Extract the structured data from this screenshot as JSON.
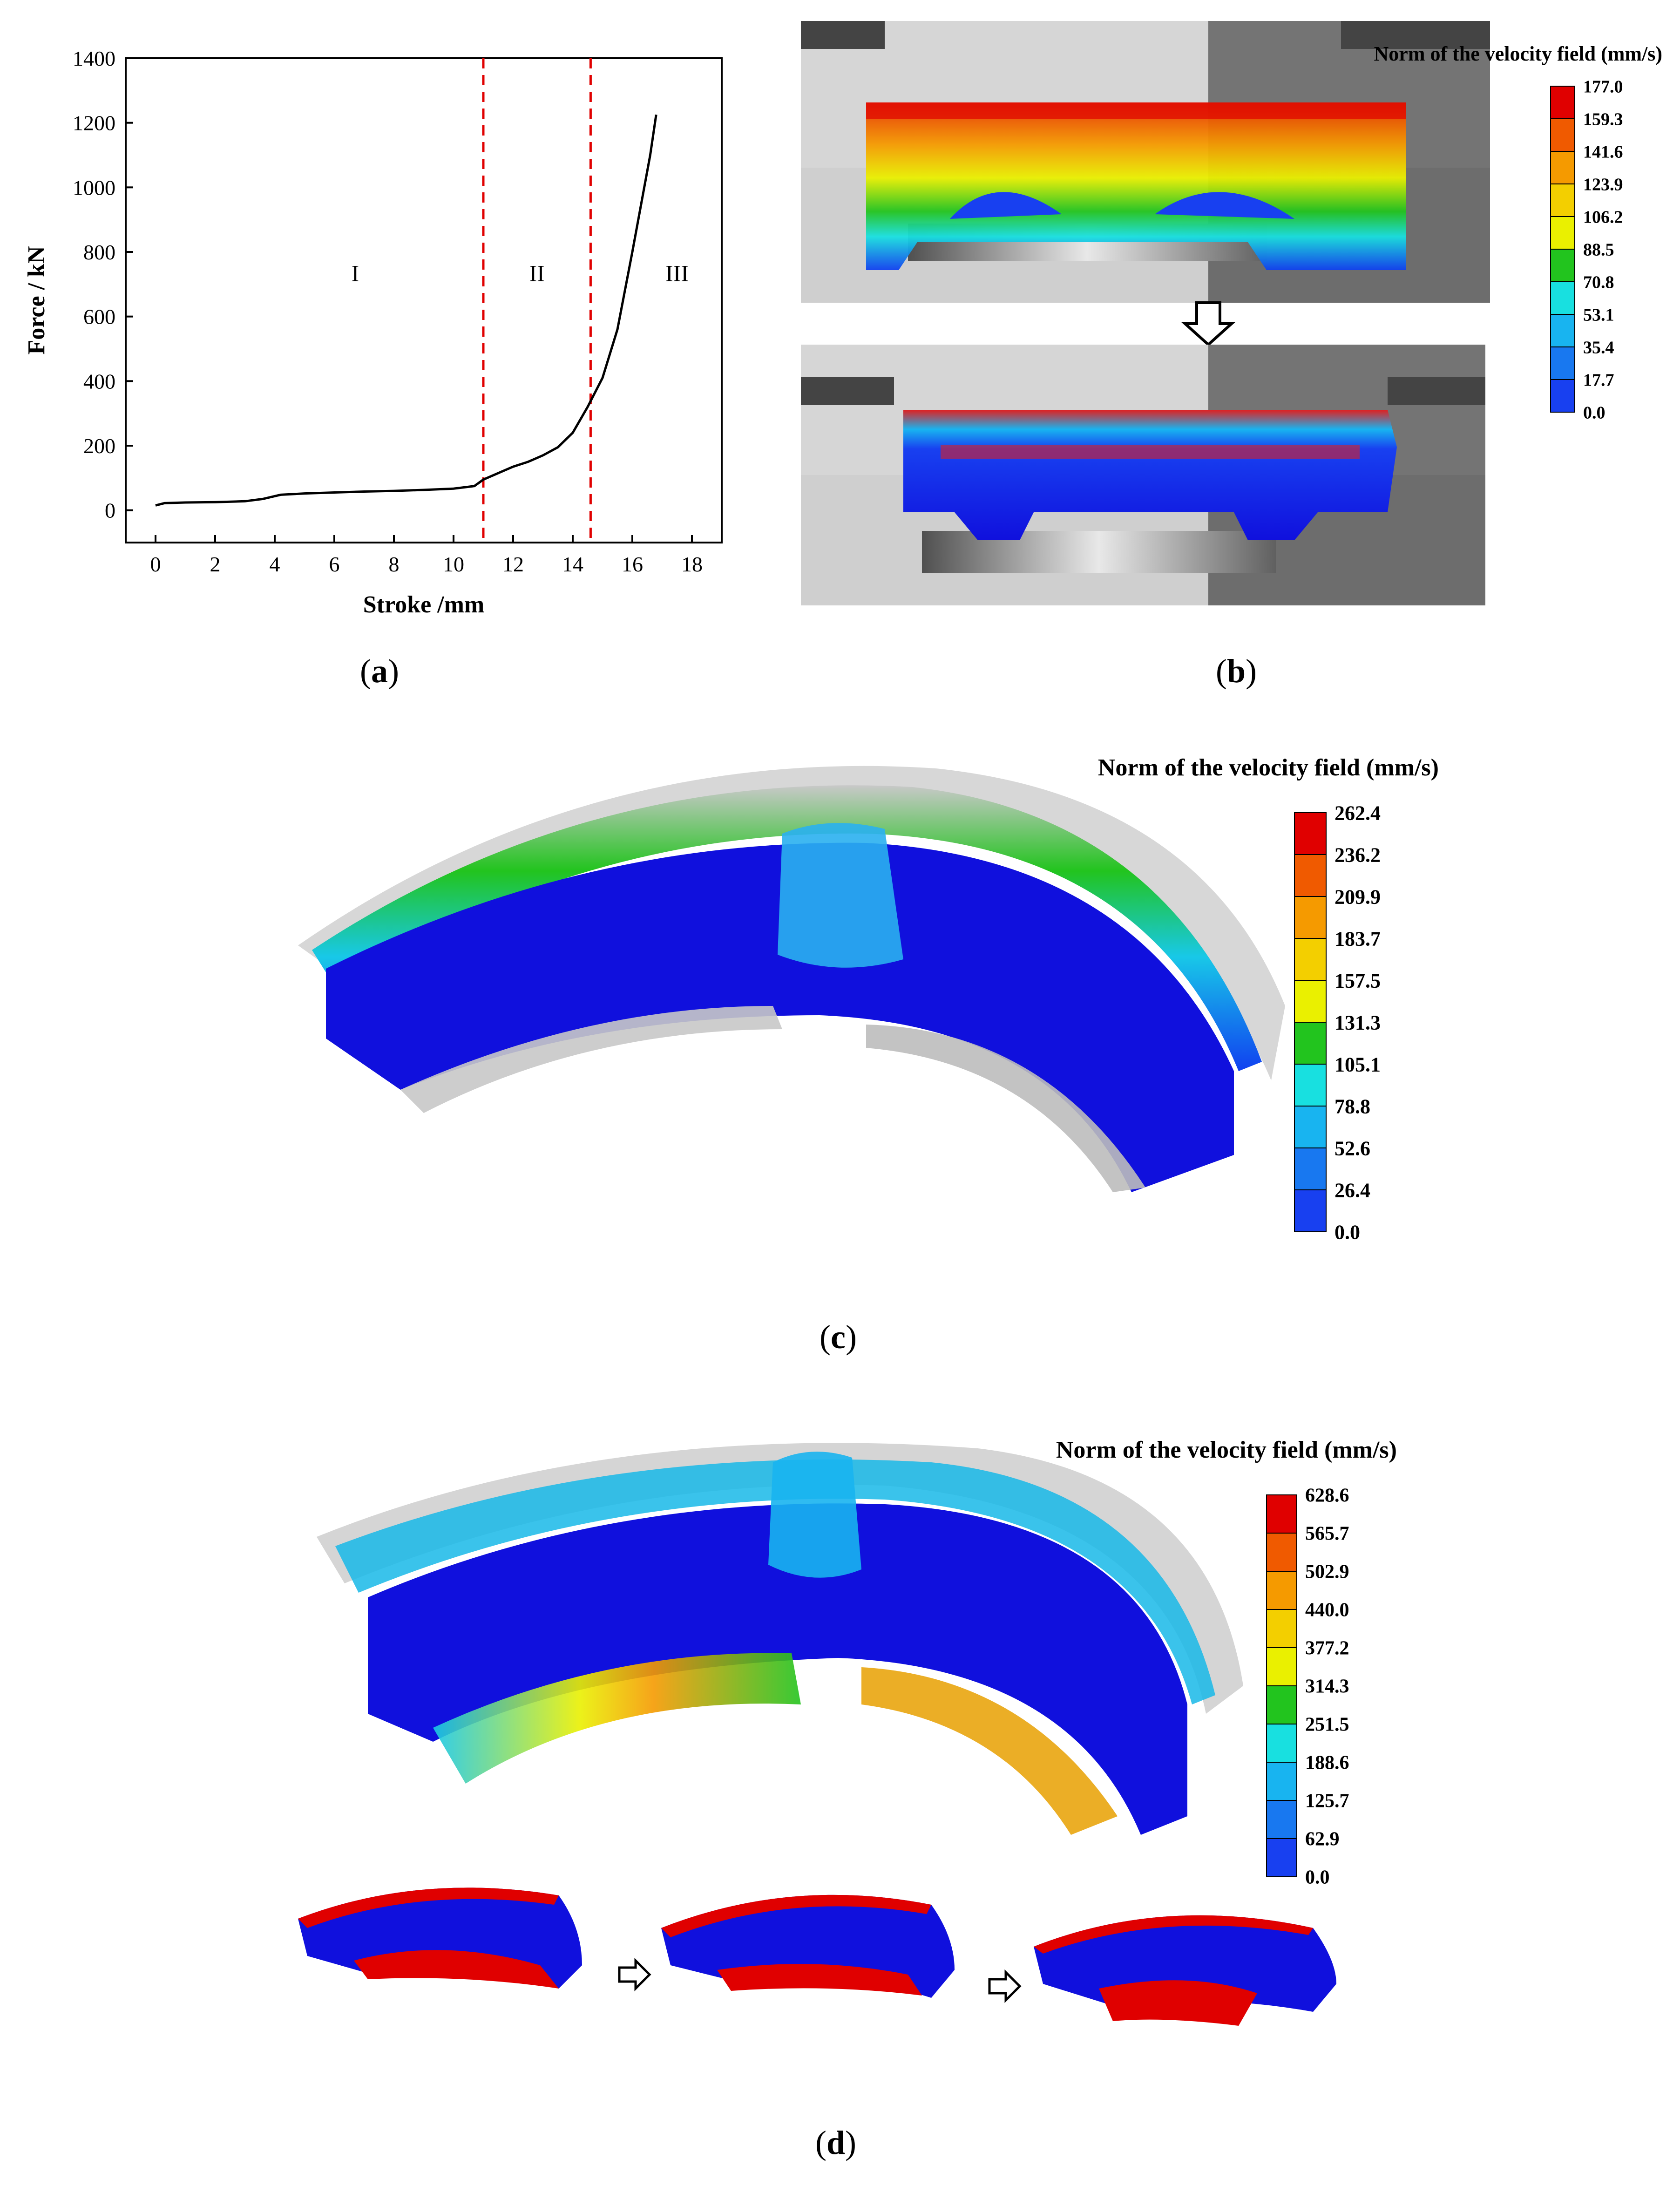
{
  "panels": {
    "a": {
      "label": "a"
    },
    "b": {
      "label": "b"
    },
    "c": {
      "label": "c"
    },
    "d": {
      "label": "d"
    }
  },
  "chart_data": {
    "type": "line",
    "xlabel": "Stroke /mm",
    "ylabel": "Force / kN",
    "xlim": [
      -1,
      19
    ],
    "ylim": [
      -100,
      1400
    ],
    "xticks": [
      0,
      2,
      4,
      6,
      8,
      10,
      12,
      14,
      16,
      18
    ],
    "yticks": [
      0,
      200,
      400,
      600,
      800,
      1000,
      1200,
      1400
    ],
    "grid": false,
    "series": [
      {
        "x": [
          0,
          0.3,
          1,
          2,
          3,
          3.6,
          4.2,
          5,
          6,
          7,
          8,
          9,
          10,
          10.7,
          11,
          11.5,
          12,
          12.5,
          13,
          13.5,
          14,
          14.5,
          15,
          15.5,
          16,
          16.3,
          16.6,
          16.8
        ],
        "y": [
          15,
          22,
          24,
          25,
          28,
          35,
          48,
          52,
          55,
          58,
          60,
          63,
          67,
          75,
          95,
          115,
          135,
          150,
          170,
          195,
          240,
          320,
          410,
          560,
          800,
          950,
          1100,
          1225
        ]
      }
    ],
    "vlines": [
      11,
      14.6
    ],
    "regions": [
      {
        "label": "I",
        "x": 6.7,
        "y": 710
      },
      {
        "label": "II",
        "x": 12.8,
        "y": 710
      },
      {
        "label": "III",
        "x": 17.5,
        "y": 710
      }
    ]
  },
  "legends": {
    "b": {
      "title": "Norm of the velocity field (mm/s)",
      "values": [
        "177.0",
        "159.3",
        "141.6",
        "123.9",
        "106.2",
        "88.5",
        "70.8",
        "53.1",
        "35.4",
        "17.7",
        "0.0"
      ]
    },
    "c": {
      "title": "Norm of the velocity field (mm/s)",
      "values": [
        "262.4",
        "236.2",
        "209.9",
        "183.7",
        "157.5",
        "131.3",
        "105.1",
        "78.8",
        "52.6",
        "26.4",
        "0.0"
      ]
    },
    "d": {
      "title": "Norm of the velocity field (mm/s)",
      "values": [
        "628.6",
        "565.7",
        "502.9",
        "440.0",
        "377.2",
        "314.3",
        "251.5",
        "188.6",
        "125.7",
        "62.9",
        "0.0"
      ]
    }
  },
  "colors": {
    "scale": [
      "#e00000",
      "#f05a00",
      "#f59a00",
      "#f3cf00",
      "#eaf000",
      "#22c41e",
      "#18e0e0",
      "#18b4f0",
      "#1878f0",
      "#1840f0",
      "#0000e8"
    ],
    "part_blue": "#1010dd",
    "die_light": "#d4d4d4",
    "die_dark": "#707070"
  }
}
